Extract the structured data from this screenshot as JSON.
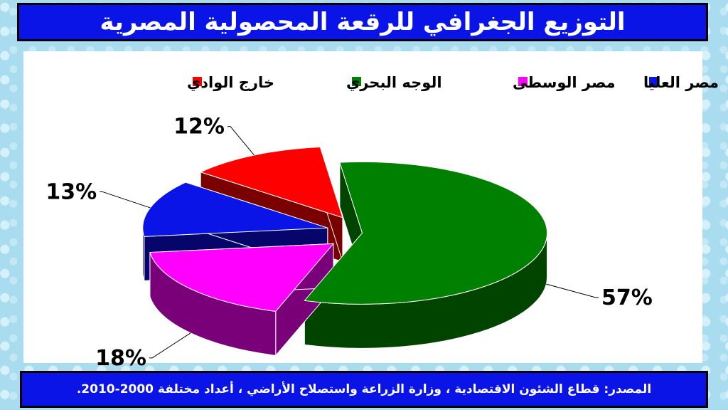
{
  "header": {
    "title": "التوزيع الجغرافي للرقعة المحصولية المصرية"
  },
  "footer": {
    "source": "المصدر: قطاع الشئون الاقتصادية ، وزارة الزراعة واستصلاح الأراضي ، أعداد مختلفة 2000-2010."
  },
  "chart_data": {
    "type": "pie",
    "style": "3d-exploded",
    "legend_position": "top",
    "series": [
      {
        "name": "مصر العليا",
        "value": 13,
        "label": "13%",
        "color": "#0a14e6",
        "side": "#05056b"
      },
      {
        "name": "مصر الوسطى",
        "value": 18,
        "label": "18%",
        "color": "#ff00ff",
        "side": "#7a007a"
      },
      {
        "name": "الوجه البحري",
        "value": 57,
        "label": "57%",
        "color": "#008000",
        "side": "#004400"
      },
      {
        "name": "خارج الوادي",
        "value": 12,
        "label": "12%",
        "color": "#ff0000",
        "side": "#7a0000"
      }
    ]
  }
}
